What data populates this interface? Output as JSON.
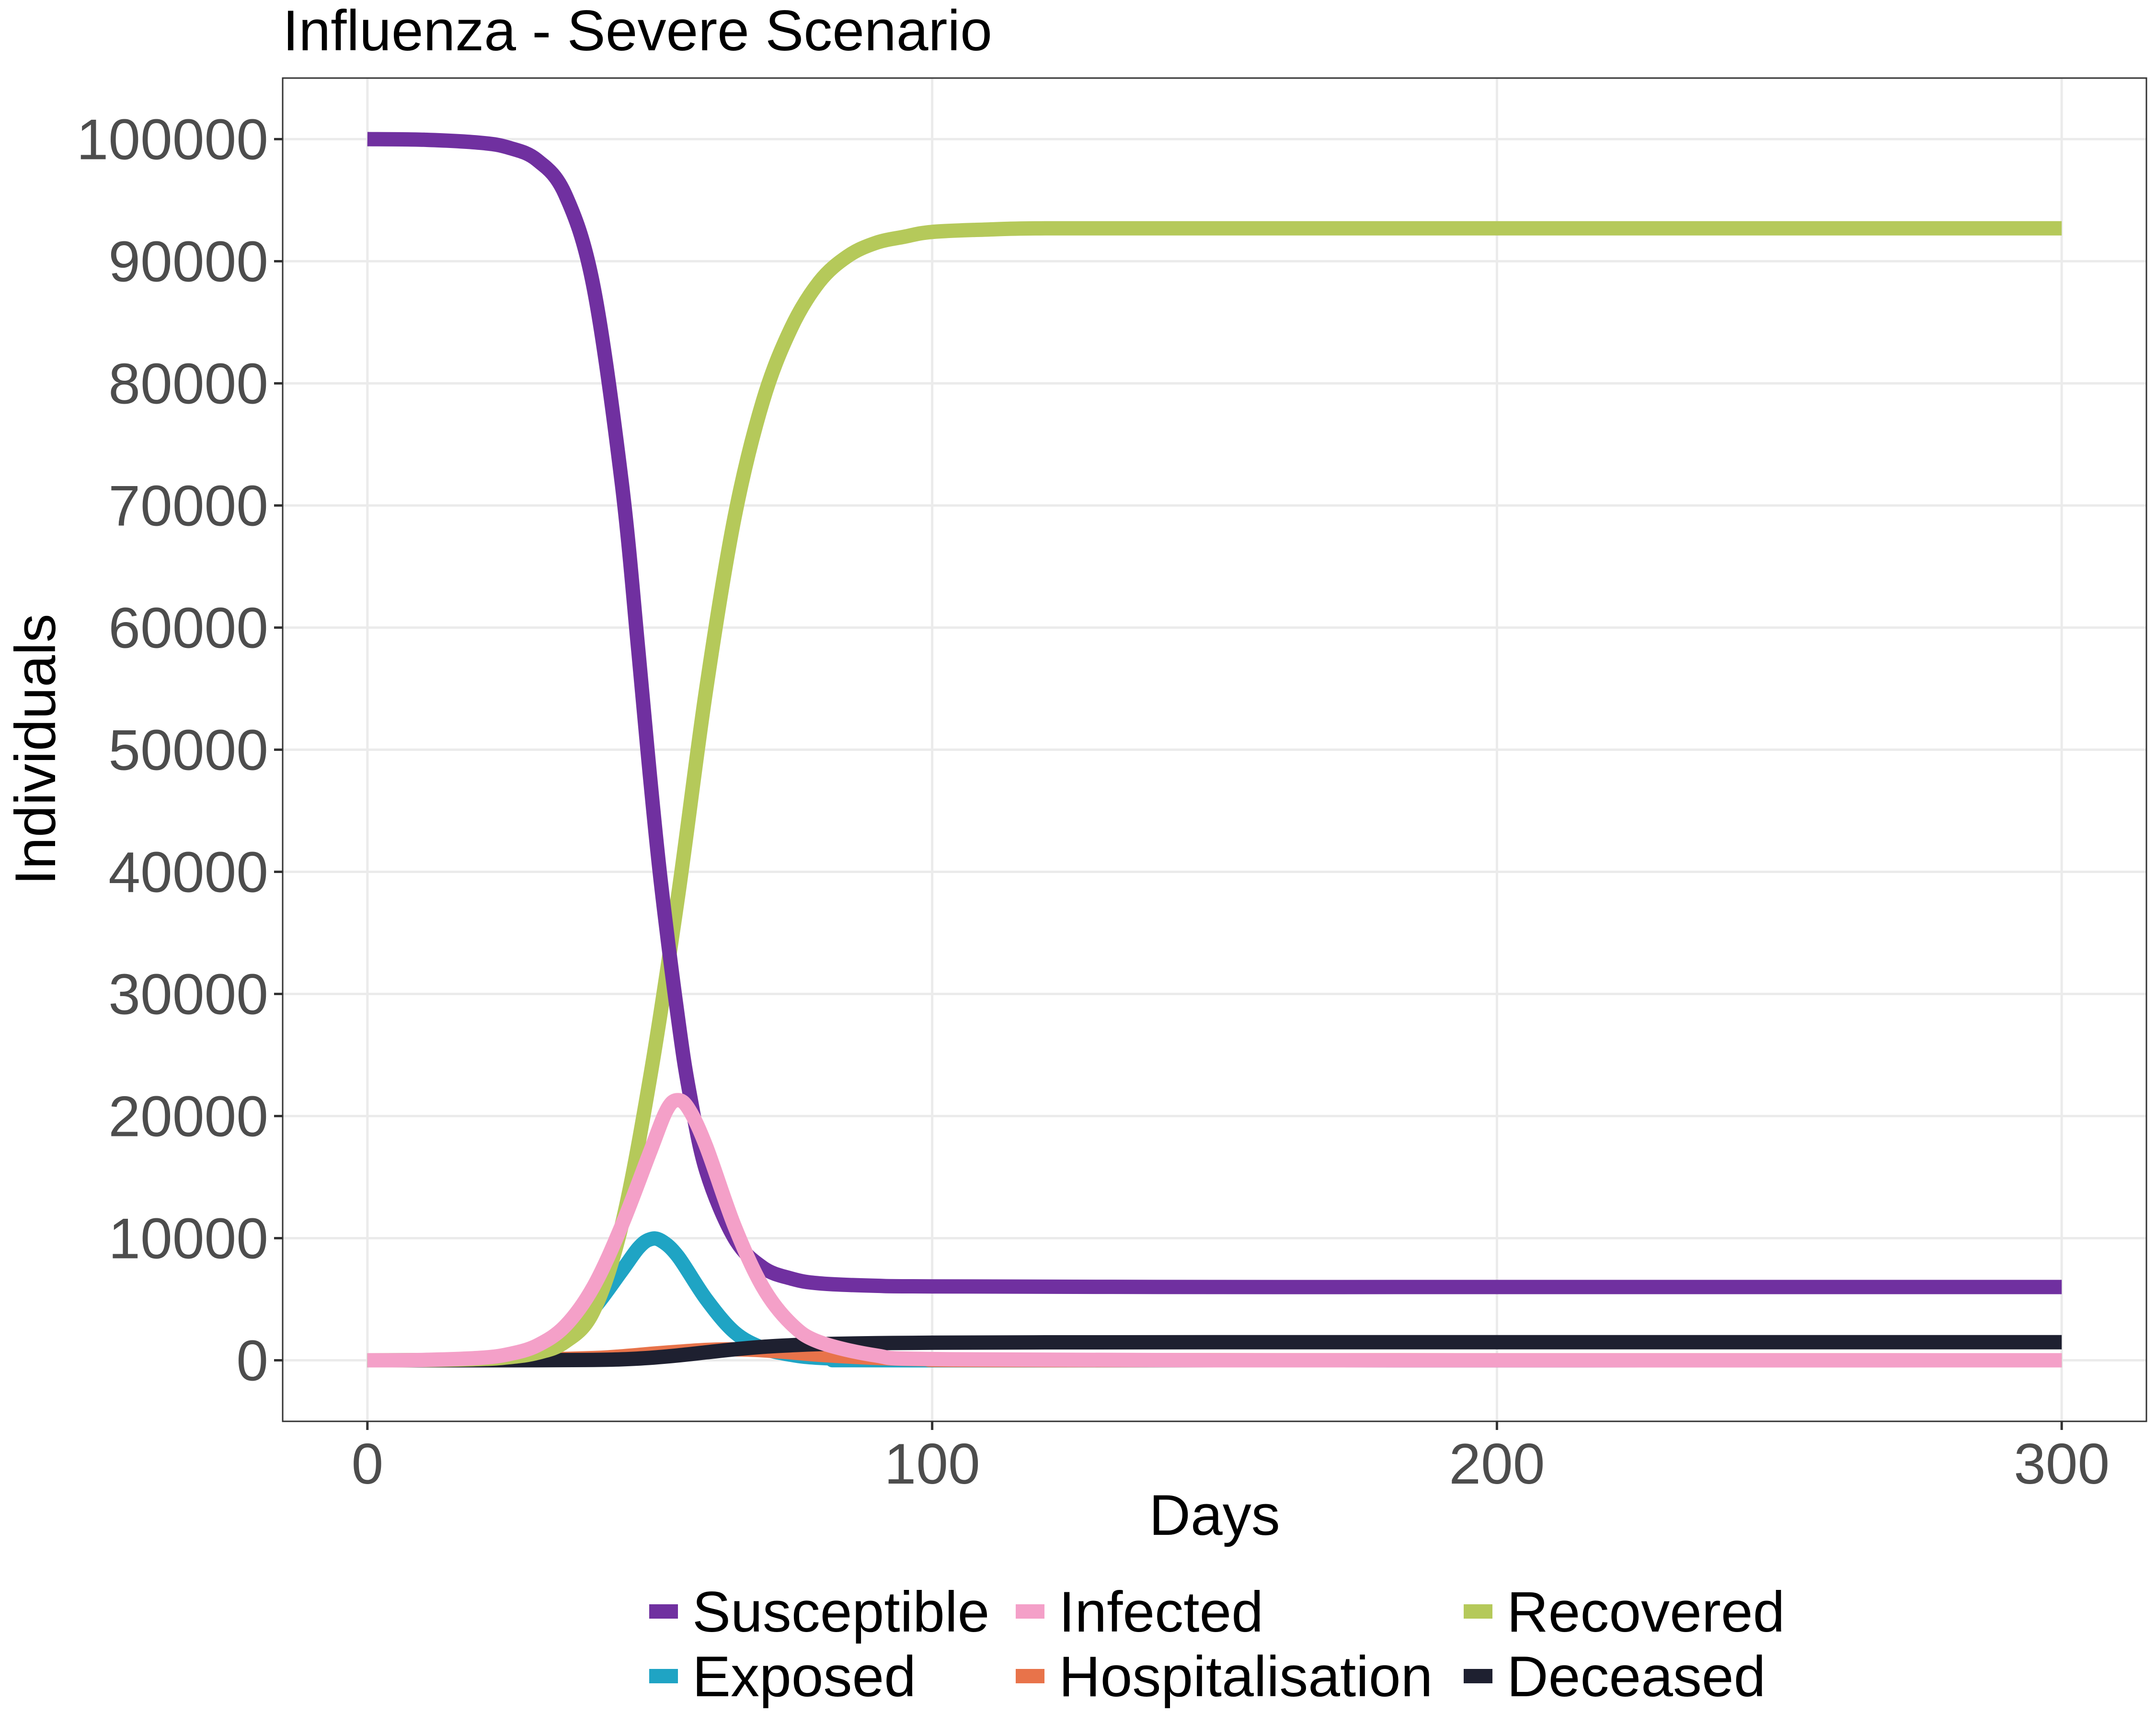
{
  "chart_data": {
    "type": "line",
    "title": "Influenza - Severe Scenario",
    "xlabel": "Days",
    "ylabel": "Individuals",
    "xlim": [
      -15,
      315
    ],
    "ylim": [
      -5000,
      105000
    ],
    "x_ticks": [
      0,
      100,
      200,
      300
    ],
    "x_tick_labels": [
      "0",
      "100",
      "200",
      "300"
    ],
    "y_ticks": [
      0,
      10000,
      20000,
      30000,
      40000,
      50000,
      60000,
      70000,
      80000,
      90000,
      100000
    ],
    "y_tick_labels": [
      "0",
      "10000",
      "20000",
      "30000",
      "40000",
      "50000",
      "60000",
      "70000",
      "80000",
      "90000",
      "100000"
    ],
    "grid": true,
    "legend_position": "bottom",
    "series": [
      {
        "name": "Susceptible",
        "color": "#7030a0",
        "x": [
          0,
          10,
          20,
          25,
          30,
          35,
          40,
          45,
          48,
          50,
          52,
          55,
          57,
          60,
          65,
          70,
          75,
          80,
          90,
          100,
          150,
          200,
          300
        ],
        "y": [
          100000,
          99950,
          99700,
          99300,
          98300,
          95500,
          88000,
          72000,
          58000,
          48000,
          39000,
          28000,
          22000,
          15500,
          10000,
          7600,
          6700,
          6300,
          6100,
          6050,
          6000,
          6000,
          6000
        ]
      },
      {
        "name": "Infected",
        "color": "#f4a0c8",
        "x": [
          0,
          10,
          20,
          25,
          30,
          35,
          40,
          45,
          50,
          53,
          55,
          57,
          60,
          65,
          70,
          75,
          80,
          90,
          100,
          150,
          300
        ],
        "y": [
          0,
          30,
          200,
          500,
          1200,
          2800,
          6000,
          11000,
          17000,
          20500,
          21300,
          20500,
          17500,
          11000,
          6000,
          3000,
          1500,
          400,
          100,
          0,
          0
        ]
      },
      {
        "name": "Recovered",
        "color": "#b5c95a",
        "x": [
          0,
          10,
          20,
          25,
          30,
          35,
          40,
          45,
          50,
          55,
          60,
          65,
          70,
          75,
          80,
          85,
          90,
          95,
          100,
          110,
          120,
          150,
          200,
          300
        ],
        "y": [
          0,
          20,
          100,
          250,
          600,
          1500,
          4000,
          11000,
          23000,
          38000,
          55000,
          69000,
          78500,
          84500,
          88300,
          90400,
          91500,
          92000,
          92400,
          92600,
          92700,
          92700,
          92700,
          92700
        ]
      },
      {
        "name": "Exposed",
        "color": "#1fa4c4",
        "x": [
          0,
          10,
          20,
          25,
          30,
          35,
          40,
          45,
          48,
          50,
          52,
          55,
          60,
          65,
          70,
          75,
          80,
          90,
          100,
          300
        ],
        "y": [
          0,
          20,
          150,
          400,
          900,
          2000,
          4200,
          7300,
          9200,
          9900,
          9800,
          8500,
          5000,
          2300,
          1000,
          450,
          200,
          50,
          0,
          0
        ]
      },
      {
        "name": "Hospitalisation",
        "color": "#e8734a",
        "x": [
          0,
          20,
          30,
          40,
          45,
          50,
          55,
          60,
          65,
          70,
          75,
          80,
          90,
          100,
          120,
          300
        ],
        "y": [
          0,
          10,
          60,
          180,
          320,
          520,
          700,
          850,
          900,
          820,
          650,
          450,
          200,
          80,
          10,
          0
        ]
      },
      {
        "name": "Deceased",
        "color": "#1e2030",
        "x": [
          0,
          30,
          40,
          45,
          50,
          55,
          60,
          65,
          70,
          75,
          80,
          90,
          100,
          120,
          150,
          200,
          300
        ],
        "y": [
          0,
          5,
          30,
          80,
          200,
          400,
          650,
          900,
          1100,
          1230,
          1320,
          1400,
          1440,
          1470,
          1480,
          1480,
          1480
        ]
      }
    ],
    "legend_order": [
      "Susceptible",
      "Infected",
      "Recovered",
      "Exposed",
      "Hospitalisation",
      "Deceased"
    ]
  }
}
